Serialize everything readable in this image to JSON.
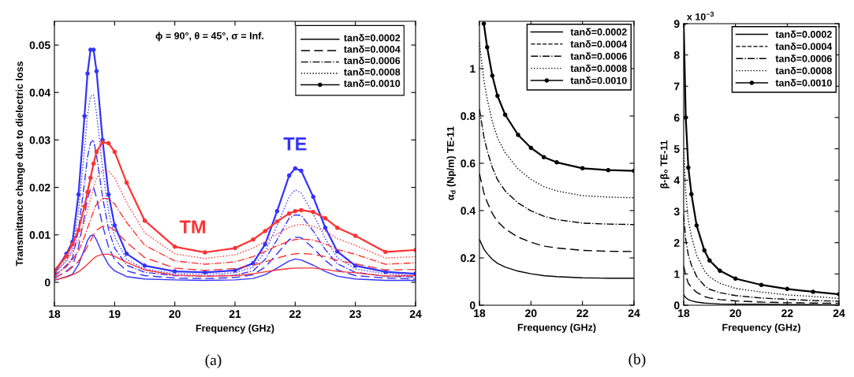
{
  "chart_data": [
    {
      "type": "line",
      "xlabel": "Frequency (GHz)",
      "ylabel": "Transmittance change due to dielectric loss",
      "x": [
        18,
        18.2,
        18.3,
        18.4,
        18.5,
        18.55,
        18.6,
        18.65,
        18.7,
        18.8,
        18.9,
        19,
        19.2,
        19.5,
        20,
        20.5,
        21,
        21.3,
        21.5,
        21.7,
        21.9,
        22,
        22.1,
        22.3,
        22.5,
        22.7,
        23,
        23.5,
        24
      ],
      "xlim": [
        18,
        24
      ],
      "xticks": [
        18,
        19,
        20,
        21,
        22,
        23,
        24
      ],
      "ylim": [
        -0.005,
        0.055
      ],
      "yticks": [
        0,
        0.01,
        0.02,
        0.03,
        0.04,
        0.05
      ],
      "grid": false,
      "annotations": [
        "ϕ = 90°, θ = 45°, σ = Inf.",
        "TE",
        "TM",
        "tanδ=0.0002",
        "tanδ=0.0004",
        "tanδ=0.0006",
        "tanδ=0.0008",
        "tanδ=0.0010",
        "(a)"
      ],
      "series": [
        {
          "color": "#3333ff",
          "line_style": "solid",
          "marker": "none",
          "values": [
            0.0004,
            0.0012,
            0.0017,
            0.0037,
            0.007,
            0.0088,
            0.0098,
            0.01,
            0.0089,
            0.006,
            0.0037,
            0.0024,
            0.0012,
            0.0007,
            0.0005,
            0.0004,
            0.0005,
            0.0008,
            0.0016,
            0.003,
            0.0045,
            0.0049,
            0.0047,
            0.0036,
            0.0023,
            0.0013,
            0.0007,
            0.0004,
            0.0004
          ]
        },
        {
          "color": "#3333ff",
          "line_style": "dashed",
          "marker": "none",
          "values": [
            0.0008,
            0.0024,
            0.0034,
            0.0074,
            0.014,
            0.0176,
            0.0196,
            0.02,
            0.0178,
            0.012,
            0.0074,
            0.0048,
            0.0024,
            0.0014,
            0.0009,
            0.0008,
            0.001,
            0.0016,
            0.0032,
            0.006,
            0.009,
            0.0095,
            0.0094,
            0.0072,
            0.0046,
            0.0026,
            0.0014,
            0.0009,
            0.0007
          ]
        },
        {
          "color": "#3333ff",
          "line_style": "dashdot",
          "marker": "none",
          "values": [
            0.0012,
            0.0036,
            0.0051,
            0.0111,
            0.021,
            0.0264,
            0.0294,
            0.03,
            0.0267,
            0.018,
            0.0111,
            0.0072,
            0.0036,
            0.0021,
            0.0014,
            0.0013,
            0.0015,
            0.0024,
            0.0048,
            0.009,
            0.0135,
            0.0142,
            0.0141,
            0.0108,
            0.0069,
            0.0039,
            0.0021,
            0.0013,
            0.0011
          ]
        },
        {
          "color": "#3333ff",
          "line_style": "dotted",
          "marker": "none",
          "values": [
            0.0016,
            0.0048,
            0.0068,
            0.0148,
            0.028,
            0.0352,
            0.0392,
            0.0395,
            0.0356,
            0.024,
            0.0148,
            0.0096,
            0.0048,
            0.0028,
            0.0018,
            0.0017,
            0.002,
            0.0032,
            0.0064,
            0.012,
            0.018,
            0.0195,
            0.0188,
            0.0144,
            0.0092,
            0.0052,
            0.0028,
            0.0018,
            0.0014
          ]
        },
        {
          "color": "#3333ff",
          "line_style": "solid",
          "marker": "circle",
          "values": [
            0.002,
            0.006,
            0.0085,
            0.0185,
            0.035,
            0.044,
            0.049,
            0.049,
            0.0445,
            0.03,
            0.0185,
            0.012,
            0.006,
            0.0035,
            0.0023,
            0.0021,
            0.0025,
            0.004,
            0.008,
            0.015,
            0.0225,
            0.024,
            0.0235,
            0.018,
            0.0115,
            0.0065,
            0.0035,
            0.0022,
            0.0018
          ]
        },
        {
          "color": "#ff3333",
          "line_style": "solid",
          "marker": "none",
          "values": [
            0.0005,
            0.0011,
            0.0016,
            0.0022,
            0.0032,
            0.0038,
            0.0044,
            0.005,
            0.0055,
            0.0059,
            0.0059,
            0.0055,
            0.0042,
            0.0026,
            0.0015,
            0.0013,
            0.0014,
            0.0018,
            0.0022,
            0.0026,
            0.0029,
            0.003,
            0.003,
            0.003,
            0.0027,
            0.0023,
            0.002,
            0.0013,
            0.0014
          ]
        },
        {
          "color": "#ff3333",
          "line_style": "dashed",
          "marker": "none",
          "values": [
            0.001,
            0.0022,
            0.0032,
            0.0044,
            0.0064,
            0.0076,
            0.0088,
            0.01,
            0.011,
            0.0118,
            0.0117,
            0.011,
            0.0084,
            0.0052,
            0.003,
            0.0025,
            0.0029,
            0.0036,
            0.0043,
            0.0051,
            0.0058,
            0.006,
            0.0061,
            0.0059,
            0.0054,
            0.0046,
            0.0039,
            0.0026,
            0.0027
          ]
        },
        {
          "color": "#ff3333",
          "line_style": "dashdot",
          "marker": "none",
          "values": [
            0.0015,
            0.0033,
            0.0048,
            0.0066,
            0.0096,
            0.0114,
            0.0132,
            0.015,
            0.0165,
            0.0177,
            0.0176,
            0.0165,
            0.0126,
            0.0078,
            0.0045,
            0.0038,
            0.0043,
            0.0054,
            0.0065,
            0.0077,
            0.0087,
            0.009,
            0.0091,
            0.0089,
            0.0081,
            0.0069,
            0.0059,
            0.0038,
            0.0041
          ]
        },
        {
          "color": "#ff3333",
          "line_style": "dotted",
          "marker": "none",
          "values": [
            0.002,
            0.0044,
            0.0064,
            0.0088,
            0.0128,
            0.0152,
            0.0176,
            0.02,
            0.022,
            0.0236,
            0.0234,
            0.022,
            0.0168,
            0.0104,
            0.006,
            0.005,
            0.0058,
            0.0072,
            0.0086,
            0.0102,
            0.0116,
            0.012,
            0.0122,
            0.0118,
            0.0108,
            0.0092,
            0.0078,
            0.0051,
            0.0054
          ]
        },
        {
          "color": "#ff3333",
          "line_style": "solid",
          "marker": "circle",
          "values": [
            0.0025,
            0.0055,
            0.008,
            0.011,
            0.016,
            0.019,
            0.022,
            0.025,
            0.0275,
            0.0295,
            0.0293,
            0.0275,
            0.021,
            0.013,
            0.0075,
            0.0063,
            0.0072,
            0.009,
            0.0108,
            0.0128,
            0.0145,
            0.015,
            0.0152,
            0.0148,
            0.0135,
            0.0115,
            0.0098,
            0.0064,
            0.0068
          ]
        }
      ]
    },
    {
      "type": "line",
      "xlabel": "Frequency (GHz)",
      "ylabel": "α$_{d}$ (Np/m) TE-11",
      "x": [
        18,
        18.17,
        18.3,
        18.5,
        18.7,
        19,
        19.5,
        20,
        20.5,
        21,
        22,
        23,
        24
      ],
      "xlim": [
        18,
        24
      ],
      "xticks": [
        18,
        20,
        22,
        24
      ],
      "ylim": [
        0,
        1.2
      ],
      "yticks": [
        0,
        0.2,
        0.4,
        0.6,
        0.8,
        1
      ],
      "grid": false,
      "legend": "top right",
      "annotations": [
        "(b)"
      ],
      "series": [
        {
          "name": "tanδ=0.0002",
          "color": "#000000",
          "line_style": "solid",
          "marker": "none",
          "values": [
            0.278,
            0.238,
            0.218,
            0.194,
            0.177,
            0.161,
            0.144,
            0.133,
            0.125,
            0.121,
            0.116,
            0.114,
            0.114
          ]
        },
        {
          "name": "tanδ=0.0004",
          "color": "#000000",
          "line_style": "dashed",
          "marker": "none",
          "values": [
            0.556,
            0.476,
            0.436,
            0.388,
            0.354,
            0.322,
            0.288,
            0.266,
            0.25,
            0.242,
            0.232,
            0.228,
            0.227
          ]
        },
        {
          "name": "tanδ=0.0006",
          "color": "#000000",
          "line_style": "dashdot",
          "marker": "none",
          "values": [
            0.83,
            0.714,
            0.654,
            0.582,
            0.531,
            0.483,
            0.432,
            0.399,
            0.376,
            0.362,
            0.347,
            0.343,
            0.341
          ]
        },
        {
          "name": "tanδ=0.0008",
          "color": "#000000",
          "line_style": "dotted",
          "marker": "none",
          "values": [
            1.11,
            0.952,
            0.872,
            0.776,
            0.708,
            0.644,
            0.576,
            0.532,
            0.501,
            0.483,
            0.463,
            0.457,
            0.454
          ]
        },
        {
          "name": "tanδ=0.0010",
          "color": "#000000",
          "line_style": "solid",
          "marker": "circle",
          "values": [
            null,
            1.19,
            1.09,
            0.97,
            0.885,
            0.805,
            0.72,
            0.665,
            0.626,
            0.604,
            0.579,
            0.571,
            0.568
          ]
        }
      ]
    },
    {
      "type": "line",
      "xlabel": "Frequency (GHz)",
      "ylabel": "β-β₀ TE-11",
      "x": [
        18,
        18.08,
        18.18,
        18.3,
        18.5,
        18.8,
        19,
        19.4,
        20,
        21,
        22,
        23,
        24
      ],
      "xlim": [
        18,
        24
      ],
      "xticks": [
        18,
        20,
        22,
        24
      ],
      "ylim": [
        0,
        9
      ],
      "yticks": [
        0,
        1,
        2,
        3,
        4,
        5,
        6,
        7,
        8,
        9
      ],
      "grid": false,
      "legend": "top right",
      "annotations": [
        "x 10$^{−3}$"
      ],
      "series": [
        {
          "name": "tanδ=0.0002",
          "color": "#000000",
          "line_style": "solid",
          "marker": "none",
          "values": [
            0.33,
            0.24,
            0.18,
            0.14,
            0.1,
            0.07,
            0.06,
            0.04,
            0.03,
            0.03,
            0.02,
            0.02,
            0.01
          ]
        },
        {
          "name": "tanδ=0.0004",
          "color": "#000000",
          "line_style": "dashed",
          "marker": "none",
          "values": [
            1.26,
            0.95,
            0.7,
            0.57,
            0.41,
            0.28,
            0.23,
            0.18,
            0.14,
            0.1,
            0.08,
            0.07,
            0.06
          ]
        },
        {
          "name": "tanδ=0.0006",
          "color": "#000000",
          "line_style": "dashdot",
          "marker": "none",
          "values": [
            2.9,
            2.1,
            1.6,
            1.28,
            0.92,
            0.63,
            0.51,
            0.4,
            0.31,
            0.23,
            0.19,
            0.15,
            0.13
          ]
        },
        {
          "name": "tanδ=0.0008",
          "color": "#000000",
          "line_style": "dotted",
          "marker": "none",
          "values": [
            5.0,
            3.6,
            2.7,
            2.2,
            1.6,
            1.1,
            0.9,
            0.7,
            0.54,
            0.42,
            0.33,
            0.28,
            0.22
          ]
        },
        {
          "name": "tanδ=0.0010",
          "color": "#000000",
          "line_style": "solid",
          "marker": "circle",
          "values": [
            9.0,
            6.0,
            4.4,
            3.55,
            2.55,
            1.75,
            1.43,
            1.1,
            0.85,
            0.65,
            0.52,
            0.43,
            0.35
          ]
        }
      ]
    }
  ]
}
